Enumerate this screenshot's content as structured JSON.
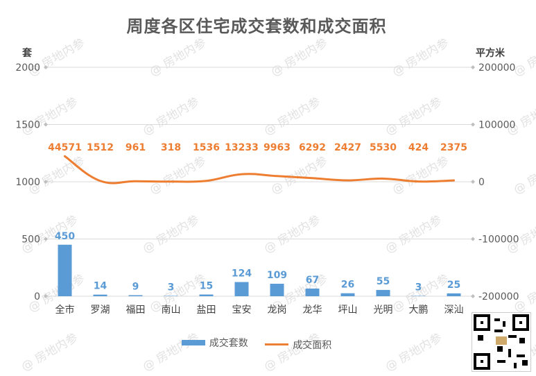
{
  "title": "周度各区住宅成交套数和成交面积",
  "unit_left": "套",
  "unit_right": "平方米",
  "watermark": "@ 房地内参",
  "colors": {
    "bar": "#5b9bd5",
    "line": "#ed7d31",
    "grid": "#d9d9d9",
    "axis_text": "#595959"
  },
  "chart_data": {
    "type": "bar",
    "categories": [
      "全市",
      "罗湖",
      "福田",
      "南山",
      "盐田",
      "宝安",
      "龙岗",
      "龙华",
      "坪山",
      "光明",
      "大鹏",
      "深汕"
    ],
    "left_axis": {
      "min": 0,
      "max": 2000,
      "ticks": [
        0,
        500,
        1000,
        1500,
        2000
      ]
    },
    "right_axis": {
      "min": -200000,
      "max": 200000,
      "ticks": [
        -200000,
        -100000,
        0,
        100000,
        200000
      ]
    },
    "series": [
      {
        "name": "成交套数",
        "type": "bar",
        "axis": "left",
        "values": [
          450,
          14,
          9,
          3,
          15,
          124,
          109,
          67,
          26,
          55,
          3,
          25
        ]
      },
      {
        "name": "成交面积",
        "type": "line",
        "axis": "right",
        "smooth": true,
        "values": [
          44571,
          1512,
          961,
          318,
          1536,
          13233,
          9963,
          6292,
          2427,
          5530,
          424,
          2375
        ]
      }
    ]
  }
}
